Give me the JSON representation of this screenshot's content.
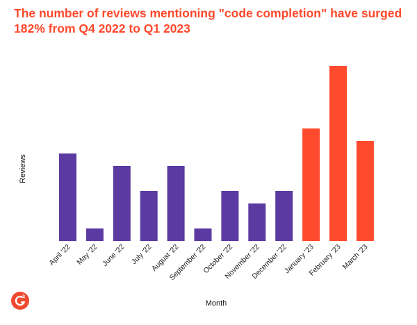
{
  "chart_data": {
    "type": "bar",
    "title": "The number of reviews mentioning \"code completion\" have surged 182% from Q4 2022 to Q1 2023",
    "xlabel": "Month",
    "ylabel": "Reviews",
    "categories": [
      "April '22",
      "May '22",
      "June '22",
      "July '22",
      "August '22",
      "September '22",
      "October '22",
      "November '22",
      "December '22",
      "January '23",
      "February '23",
      "March '23"
    ],
    "values": [
      7,
      1,
      6,
      4,
      6,
      1,
      4,
      3,
      4,
      9,
      14,
      8
    ],
    "ylim": [
      0,
      14
    ],
    "grid": false,
    "colors": {
      "2022": "#5b3aa2",
      "2023": "#ff4a2e",
      "title": "#ff492c"
    },
    "bar_colors": [
      "#5b3aa2",
      "#5b3aa2",
      "#5b3aa2",
      "#5b3aa2",
      "#5b3aa2",
      "#5b3aa2",
      "#5b3aa2",
      "#5b3aa2",
      "#5b3aa2",
      "#ff4a2e",
      "#ff4a2e",
      "#ff4a2e"
    ]
  },
  "logo": {
    "text": "G",
    "sup": "2"
  }
}
